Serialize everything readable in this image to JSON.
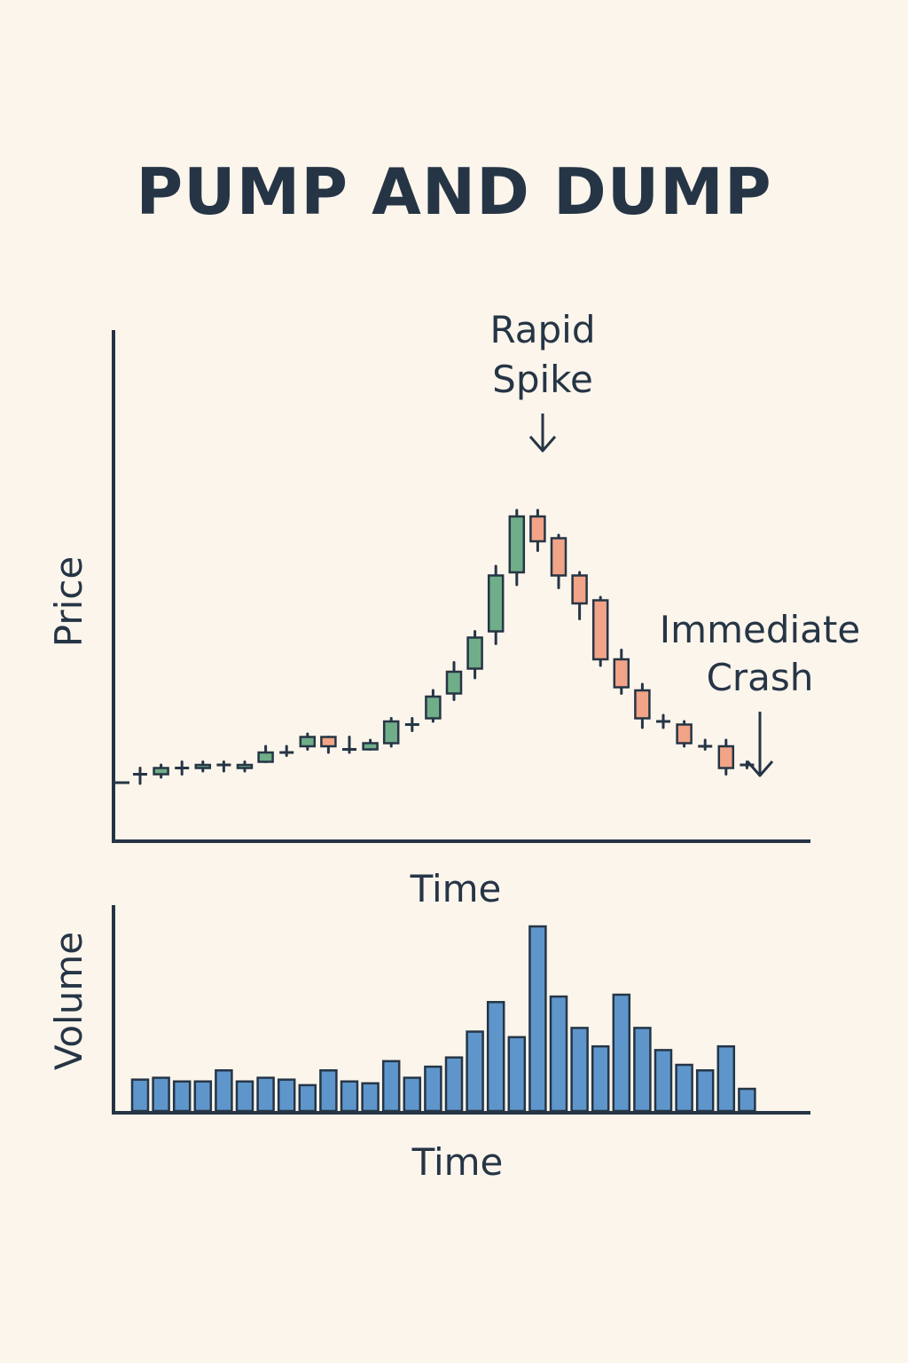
{
  "title": "PUMP AND DUMP",
  "colors": {
    "background": "#fbf5ec",
    "ink": "#263545",
    "up": "#6fae88",
    "down": "#f1a487",
    "volume": "#5e96cc"
  },
  "chart_data": [
    {
      "type": "candlestick",
      "ylabel": "Price",
      "xlabel": "Time",
      "ylim": [
        0,
        100
      ],
      "annotations": {
        "spike": {
          "text": [
            "Rapid",
            "Spike"
          ],
          "at_candle": 19
        },
        "crash": {
          "text": [
            "Immediate",
            "Crash"
          ],
          "at_candle": 29
        }
      },
      "candles": [
        {
          "open": 5,
          "close": 5,
          "high": 7,
          "low": 2
        },
        {
          "open": 5,
          "close": 7,
          "high": 8,
          "low": 4
        },
        {
          "open": 7,
          "close": 7,
          "high": 9,
          "low": 5
        },
        {
          "open": 7,
          "close": 8,
          "high": 9,
          "low": 6
        },
        {
          "open": 8,
          "close": 8,
          "high": 9,
          "low": 6
        },
        {
          "open": 7,
          "close": 8,
          "high": 9,
          "low": 6
        },
        {
          "open": 9,
          "close": 12,
          "high": 14,
          "low": 9
        },
        {
          "open": 12,
          "close": 12,
          "high": 14,
          "low": 11
        },
        {
          "open": 14,
          "close": 17,
          "high": 18,
          "low": 13
        },
        {
          "open": 17,
          "close": 14,
          "high": 17,
          "low": 12
        },
        {
          "open": 13,
          "close": 13,
          "high": 17,
          "low": 12
        },
        {
          "open": 13,
          "close": 15,
          "high": 16,
          "low": 13
        },
        {
          "open": 15,
          "close": 22,
          "high": 23,
          "low": 14
        },
        {
          "open": 21,
          "close": 21,
          "high": 23,
          "low": 19
        },
        {
          "open": 23,
          "close": 30,
          "high": 32,
          "low": 22
        },
        {
          "open": 31,
          "close": 38,
          "high": 41,
          "low": 29
        },
        {
          "open": 39,
          "close": 49,
          "high": 51,
          "low": 36
        },
        {
          "open": 51,
          "close": 69,
          "high": 72,
          "low": 47
        },
        {
          "open": 70,
          "close": 88,
          "high": 90,
          "low": 66
        },
        {
          "open": 88,
          "close": 80,
          "high": 90,
          "low": 77
        },
        {
          "open": 81,
          "close": 69,
          "high": 82,
          "low": 65
        },
        {
          "open": 69,
          "close": 60,
          "high": 70,
          "low": 55
        },
        {
          "open": 61,
          "close": 42,
          "high": 62,
          "low": 40
        },
        {
          "open": 42,
          "close": 33,
          "high": 45,
          "low": 31
        },
        {
          "open": 32,
          "close": 23,
          "high": 34,
          "low": 20
        },
        {
          "open": 22,
          "close": 22,
          "high": 24,
          "low": 20
        },
        {
          "open": 21,
          "close": 15,
          "high": 22,
          "low": 14
        },
        {
          "open": 14,
          "close": 14,
          "high": 16,
          "low": 13
        },
        {
          "open": 14,
          "close": 7,
          "high": 16,
          "low": 5
        },
        {
          "open": 8,
          "close": 8,
          "high": 9,
          "low": 7
        }
      ]
    },
    {
      "type": "bar",
      "ylabel": "Volume",
      "xlabel": "Time",
      "ylim": [
        0,
        100
      ],
      "values": [
        17,
        18,
        16,
        16,
        22,
        16,
        18,
        17,
        14,
        22,
        16,
        15,
        27,
        18,
        24,
        29,
        43,
        59,
        40,
        100,
        62,
        45,
        35,
        63,
        45,
        33,
        25,
        22,
        35,
        12
      ]
    }
  ]
}
